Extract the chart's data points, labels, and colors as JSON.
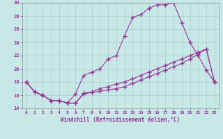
{
  "xlabel": "Windchill (Refroidissement éolien,°C)",
  "background_color": "#c8e8e8",
  "grid_color": "#a8cccc",
  "line_color": "#993399",
  "xlim_min": -0.5,
  "xlim_max": 23.5,
  "ylim_min": 14,
  "ylim_max": 30,
  "yticks": [
    14,
    16,
    18,
    20,
    22,
    24,
    26,
    28,
    30
  ],
  "xticks": [
    0,
    1,
    2,
    3,
    4,
    5,
    6,
    7,
    8,
    9,
    10,
    11,
    12,
    13,
    14,
    15,
    16,
    17,
    18,
    19,
    20,
    21,
    22,
    23
  ],
  "line1_x": [
    0,
    1,
    2,
    3,
    4,
    5,
    6,
    7,
    8,
    9,
    10,
    11,
    12,
    13,
    14,
    15,
    16,
    17,
    18,
    19,
    20,
    21,
    22,
    23
  ],
  "line1_y": [
    18,
    16.5,
    16,
    15.2,
    15.2,
    14.8,
    16.2,
    19,
    19.5,
    20,
    21.5,
    22,
    25,
    27.8,
    28.2,
    29.2,
    29.7,
    29.7,
    30,
    27,
    24,
    22,
    19.8,
    18
  ],
  "line2_x": [
    0,
    1,
    2,
    3,
    4,
    5,
    6,
    7,
    8,
    9,
    10,
    11,
    12,
    13,
    14,
    15,
    16,
    17,
    18,
    19,
    20,
    21,
    22,
    23
  ],
  "line2_y": [
    18,
    16.5,
    16,
    15.2,
    15.2,
    14.8,
    14.8,
    16.3,
    16.5,
    17,
    17.3,
    17.7,
    18,
    18.5,
    19,
    19.5,
    20,
    20.5,
    21,
    21.5,
    22,
    22.5,
    23,
    18
  ],
  "line3_x": [
    0,
    1,
    2,
    3,
    4,
    5,
    6,
    7,
    8,
    9,
    10,
    11,
    12,
    13,
    14,
    15,
    16,
    17,
    18,
    19,
    20,
    21,
    22,
    23
  ],
  "line3_y": [
    18,
    16.5,
    16,
    15.2,
    15.2,
    14.8,
    14.8,
    16.2,
    16.4,
    16.6,
    16.8,
    17,
    17.3,
    17.8,
    18.3,
    18.8,
    19.3,
    19.8,
    20.3,
    20.8,
    21.5,
    22.2,
    23,
    18
  ]
}
